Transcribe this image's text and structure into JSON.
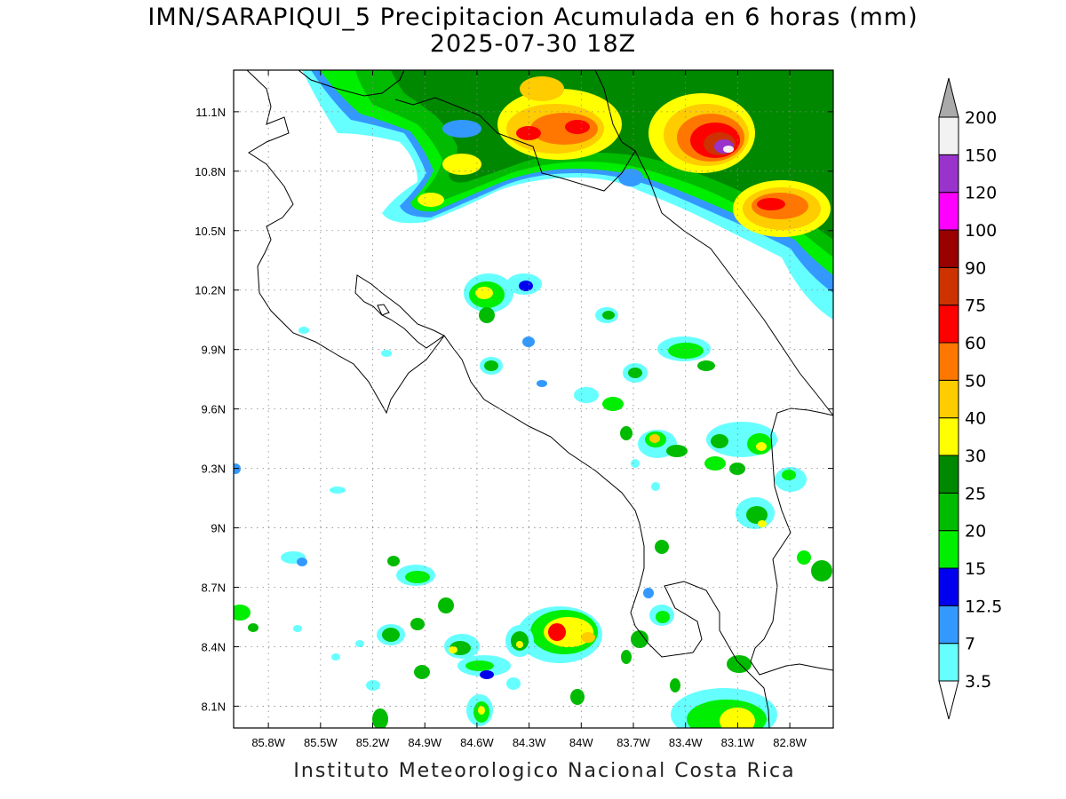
{
  "title": {
    "line1": "IMN/SARAPIQUI_5 Precipitacion Acumulada en 6 horas (mm)",
    "line2": "2025-07-30 18Z"
  },
  "credit": "Instituto Meteorologico Nacional Costa Rica",
  "axes": {
    "lon_range": [
      -86.0,
      -82.55
    ],
    "lat_range": [
      7.99,
      11.31
    ],
    "x_ticks": [
      "85.8W",
      "85.5W",
      "85.2W",
      "84.9W",
      "84.6W",
      "84.3W",
      "84W",
      "83.7W",
      "83.4W",
      "83.1W",
      "82.8W"
    ],
    "x_tick_lons": [
      -85.8,
      -85.5,
      -85.2,
      -84.9,
      -84.6,
      -84.3,
      -84.0,
      -83.7,
      -83.4,
      -83.1,
      -82.8
    ],
    "y_ticks": [
      "11.1N",
      "10.8N",
      "10.5N",
      "10.2N",
      "9.9N",
      "9.6N",
      "9.3N",
      "9N",
      "8.7N",
      "8.4N",
      "8.1N"
    ],
    "y_tick_lats": [
      11.1,
      10.8,
      10.5,
      10.2,
      9.9,
      9.6,
      9.3,
      9.0,
      8.7,
      8.4,
      8.1
    ],
    "grid": "dotted"
  },
  "colorbar": {
    "labels": [
      "3.5",
      "7",
      "12.5",
      "15",
      "20",
      "25",
      "30",
      "40",
      "50",
      "60",
      "75",
      "90",
      "100",
      "120",
      "150",
      "200"
    ],
    "colors": [
      "#66ffff",
      "#3399ff",
      "#0000ee",
      "#00ee00",
      "#00bb00",
      "#008800",
      "#ffff00",
      "#ffcc00",
      "#ff7700",
      "#ff0000",
      "#cc3300",
      "#990000",
      "#ff00ff",
      "#9933cc",
      "#f2f2f2"
    ],
    "under_color": "#ffffff",
    "over_color": "#aaaaaa"
  }
}
